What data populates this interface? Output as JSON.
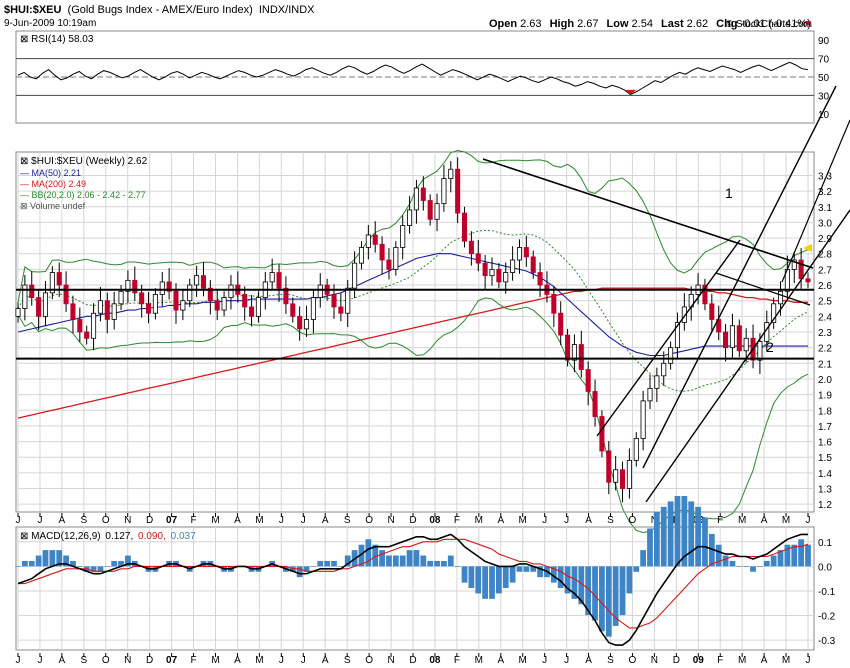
{
  "header": {
    "symbol": "$HUI:$XEU",
    "description": "(Gold Bugs Index - AMEX/Euro Index)",
    "exchange": "INDX/INDX",
    "date": "9-Jun-2009 10:19am",
    "copyright": "© StockCharts.com",
    "open_label": "Open",
    "open": "2.63",
    "high_label": "High",
    "high": "2.67",
    "low_label": "Low",
    "low": "2.54",
    "last_label": "Last",
    "last": "2.62",
    "chg_label": "Chg",
    "chg": "-0.01 (-0.41%)"
  },
  "rsi_legend": "RSI(14) 58.03",
  "price_legend": {
    "main": "$HUI:$XEU (Weekly) 2.62",
    "ma50": "MA(50) 2.21",
    "ma200": "MA(200) 2.49",
    "bb": "BB(20,2.0) 2.06 - 2.42 - 2.77",
    "volume": "Volume undef"
  },
  "macd_legend": {
    "label": "MACD(12,26,9)",
    "macd": "0.127,",
    "signal": "0.090,",
    "hist": "0.037"
  },
  "annotations": [
    "1",
    "2"
  ],
  "colors": {
    "up": "#ffffff",
    "down": "#c0002a",
    "ma50": "#1c1ca0",
    "ma200": "#d81818",
    "bb": "#2c8a2c",
    "macd": "#000000",
    "signal": "#d81818",
    "hist": "#3d85c6",
    "rsi_overbought_fill": "#d81818"
  },
  "chart_data": [
    {
      "type": "line",
      "panel": "rsi",
      "title": "RSI(14) 58.03",
      "ylim": [
        0,
        100
      ],
      "yticks": [
        10,
        30,
        50,
        70,
        90
      ],
      "levels": [
        30,
        70
      ],
      "y": [
        52,
        55,
        50,
        48,
        54,
        58,
        52,
        47,
        49,
        53,
        56,
        51,
        48,
        53,
        57,
        55,
        52,
        49,
        51,
        55,
        58,
        54,
        50,
        47,
        50,
        54,
        56,
        53,
        49,
        52,
        55,
        53,
        50,
        48,
        51,
        54,
        57,
        55,
        52,
        50,
        52,
        55,
        58,
        56,
        53,
        51,
        54,
        58,
        60,
        57,
        54,
        52,
        55,
        59,
        62,
        60,
        56,
        53,
        56,
        60,
        63,
        61,
        57,
        54,
        57,
        61,
        64,
        60,
        56,
        52,
        55,
        58,
        56,
        53,
        50,
        47,
        50,
        53,
        51,
        48,
        45,
        48,
        51,
        49,
        46,
        44,
        47,
        50,
        48,
        45,
        43,
        40,
        42,
        45,
        43,
        40,
        38,
        41,
        39,
        36,
        31,
        34,
        38,
        42,
        46,
        44,
        48,
        52,
        55,
        53,
        57,
        60,
        58,
        56,
        59,
        62,
        60,
        58,
        55,
        58,
        61,
        63,
        60,
        57,
        60,
        63,
        66,
        63,
        59,
        58
      ]
    },
    {
      "type": "candlestick",
      "panel": "price",
      "title": "$HUI:$XEU (Weekly) 2.62",
      "ylim": [
        1.15,
        3.45
      ],
      "yticks": [
        1.2,
        1.3,
        1.4,
        1.5,
        1.6,
        1.7,
        1.8,
        1.9,
        2.0,
        2.1,
        2.2,
        2.3,
        2.4,
        2.5,
        2.6,
        2.7,
        2.8,
        2.9,
        3.0,
        3.1,
        3.2,
        3.3
      ],
      "close": [
        2.45,
        2.6,
        2.52,
        2.4,
        2.55,
        2.68,
        2.6,
        2.48,
        2.38,
        2.3,
        2.26,
        2.42,
        2.5,
        2.38,
        2.48,
        2.56,
        2.63,
        2.55,
        2.48,
        2.42,
        2.54,
        2.62,
        2.56,
        2.44,
        2.5,
        2.6,
        2.66,
        2.58,
        2.5,
        2.44,
        2.52,
        2.6,
        2.54,
        2.46,
        2.4,
        2.52,
        2.62,
        2.68,
        2.58,
        2.48,
        2.4,
        2.32,
        2.38,
        2.52,
        2.6,
        2.54,
        2.46,
        2.42,
        2.58,
        2.74,
        2.84,
        2.92,
        2.86,
        2.76,
        2.7,
        2.84,
        2.98,
        3.08,
        3.22,
        3.14,
        3.02,
        3.12,
        3.28,
        3.34,
        3.06,
        2.88,
        2.8,
        2.74,
        2.66,
        2.7,
        2.62,
        2.68,
        2.76,
        2.84,
        2.78,
        2.68,
        2.6,
        2.54,
        2.42,
        2.28,
        2.12,
        2.22,
        2.06,
        1.92,
        1.76,
        1.54,
        1.34,
        1.42,
        1.3,
        1.48,
        1.62,
        1.86,
        1.94,
        2.02,
        2.1,
        2.2,
        2.36,
        2.46,
        2.54,
        2.6,
        2.48,
        2.38,
        2.3,
        2.2,
        2.34,
        2.18,
        2.26,
        2.12,
        2.24,
        2.36,
        2.48,
        2.56,
        2.7,
        2.76,
        2.64,
        2.62
      ],
      "ma50": [
        2.3,
        2.31,
        2.32,
        2.33,
        2.34,
        2.35,
        2.36,
        2.37,
        2.38,
        2.39,
        2.4,
        2.4,
        2.41,
        2.42,
        2.42,
        2.43,
        2.44,
        2.44,
        2.45,
        2.45,
        2.46,
        2.46,
        2.47,
        2.47,
        2.48,
        2.48,
        2.48,
        2.49,
        2.49,
        2.49,
        2.5,
        2.5,
        2.5,
        2.5,
        2.51,
        2.51,
        2.51,
        2.51,
        2.51,
        2.51,
        2.51,
        2.51,
        2.51,
        2.52,
        2.52,
        2.53,
        2.54,
        2.55,
        2.57,
        2.59,
        2.61,
        2.63,
        2.65,
        2.67,
        2.69,
        2.71,
        2.73,
        2.75,
        2.77,
        2.78,
        2.79,
        2.8,
        2.8,
        2.8,
        2.79,
        2.78,
        2.77,
        2.76,
        2.75,
        2.74,
        2.73,
        2.72,
        2.71,
        2.7,
        2.69,
        2.67,
        2.65,
        2.62,
        2.59,
        2.55,
        2.51,
        2.47,
        2.43,
        2.39,
        2.35,
        2.31,
        2.27,
        2.24,
        2.21,
        2.19,
        2.17,
        2.16,
        2.15,
        2.15,
        2.15,
        2.16,
        2.17,
        2.18,
        2.19,
        2.2,
        2.21,
        2.21,
        2.21,
        2.21,
        2.21,
        2.21,
        2.21,
        2.21,
        2.21,
        2.21,
        2.21,
        2.21,
        2.21,
        2.21,
        2.21,
        2.21
      ],
      "ma200": [
        1.75,
        1.76,
        1.77,
        1.78,
        1.79,
        1.8,
        1.81,
        1.82,
        1.83,
        1.84,
        1.85,
        1.86,
        1.87,
        1.88,
        1.89,
        1.9,
        1.91,
        1.92,
        1.93,
        1.94,
        1.95,
        1.96,
        1.97,
        1.98,
        1.99,
        2.0,
        2.01,
        2.02,
        2.03,
        2.04,
        2.05,
        2.06,
        2.07,
        2.08,
        2.09,
        2.1,
        2.11,
        2.12,
        2.13,
        2.14,
        2.15,
        2.16,
        2.17,
        2.18,
        2.19,
        2.2,
        2.21,
        2.22,
        2.23,
        2.24,
        2.25,
        2.26,
        2.27,
        2.28,
        2.29,
        2.3,
        2.31,
        2.32,
        2.33,
        2.34,
        2.35,
        2.36,
        2.37,
        2.38,
        2.39,
        2.4,
        2.41,
        2.42,
        2.43,
        2.44,
        2.45,
        2.46,
        2.47,
        2.48,
        2.49,
        2.5,
        2.51,
        2.52,
        2.53,
        2.54,
        2.55,
        2.56,
        2.56,
        2.57,
        2.57,
        2.58,
        2.58,
        2.58,
        2.58,
        2.58,
        2.58,
        2.58,
        2.58,
        2.58,
        2.58,
        2.58,
        2.58,
        2.58,
        2.57,
        2.57,
        2.56,
        2.56,
        2.55,
        2.55,
        2.54,
        2.53,
        2.52,
        2.52,
        2.51,
        2.51,
        2.5,
        2.5,
        2.5,
        2.49,
        2.49,
        2.49
      ],
      "horizontal_lines": [
        2.57,
        2.13
      ],
      "x_labels": [
        "J",
        "J",
        "A",
        "S",
        "O",
        "N",
        "D",
        "07",
        "F",
        "M",
        "A",
        "M",
        "J",
        "J",
        "A",
        "S",
        "O",
        "N",
        "D",
        "08",
        "F",
        "M",
        "A",
        "M",
        "J",
        "J",
        "A",
        "S",
        "O",
        "N",
        "D",
        "09",
        "F",
        "M",
        "A",
        "M",
        "J"
      ],
      "annotations": [
        "1",
        "2"
      ]
    },
    {
      "type": "line",
      "panel": "macd",
      "title": "MACD(12,26,9) 0.127, 0.090, 0.037",
      "ylim": [
        -0.34,
        0.16
      ],
      "yticks": [
        -0.3,
        -0.2,
        -0.1,
        0.0,
        0.1
      ],
      "series": [
        {
          "name": "MACD(12,26,9)",
          "values": [
            -0.07,
            -0.06,
            -0.05,
            -0.03,
            -0.01,
            0.0,
            0.01,
            0.01,
            0.0,
            -0.01,
            -0.02,
            -0.03,
            -0.03,
            -0.02,
            -0.01,
            0.0,
            0.01,
            0.01,
            0.0,
            -0.01,
            -0.01,
            0.0,
            0.01,
            0.01,
            0.0,
            -0.01,
            0.0,
            0.01,
            0.01,
            0.0,
            -0.01,
            -0.01,
            0.0,
            0.0,
            -0.01,
            -0.01,
            0.0,
            0.01,
            0.0,
            -0.01,
            -0.02,
            -0.03,
            -0.03,
            -0.02,
            -0.01,
            -0.01,
            -0.01,
            -0.01,
            0.01,
            0.03,
            0.05,
            0.07,
            0.08,
            0.08,
            0.08,
            0.09,
            0.1,
            0.11,
            0.12,
            0.12,
            0.11,
            0.11,
            0.12,
            0.13,
            0.11,
            0.08,
            0.06,
            0.04,
            0.02,
            0.01,
            0.0,
            0.0,
            0.0,
            0.01,
            0.01,
            0.0,
            -0.01,
            -0.02,
            -0.04,
            -0.06,
            -0.09,
            -0.11,
            -0.14,
            -0.18,
            -0.22,
            -0.27,
            -0.31,
            -0.32,
            -0.32,
            -0.3,
            -0.26,
            -0.21,
            -0.16,
            -0.11,
            -0.07,
            -0.03,
            0.01,
            0.04,
            0.06,
            0.08,
            0.08,
            0.07,
            0.06,
            0.05,
            0.05,
            0.04,
            0.04,
            0.03,
            0.04,
            0.05,
            0.07,
            0.09,
            0.11,
            0.12,
            0.13,
            0.13
          ]
        },
        {
          "name": "signal",
          "values": [
            -0.07,
            -0.07,
            -0.06,
            -0.05,
            -0.04,
            -0.03,
            -0.02,
            -0.01,
            -0.01,
            -0.01,
            -0.01,
            -0.02,
            -0.02,
            -0.02,
            -0.02,
            -0.01,
            -0.01,
            0.0,
            0.0,
            0.0,
            0.0,
            0.0,
            0.0,
            0.0,
            0.0,
            0.0,
            0.0,
            0.0,
            0.0,
            0.0,
            0.0,
            0.0,
            0.0,
            0.0,
            0.0,
            0.0,
            0.0,
            0.0,
            0.0,
            0.0,
            -0.01,
            -0.01,
            -0.02,
            -0.02,
            -0.02,
            -0.02,
            -0.02,
            -0.01,
            -0.01,
            0.0,
            0.01,
            0.02,
            0.04,
            0.05,
            0.06,
            0.07,
            0.08,
            0.08,
            0.09,
            0.1,
            0.1,
            0.1,
            0.11,
            0.11,
            0.11,
            0.11,
            0.1,
            0.09,
            0.08,
            0.07,
            0.05,
            0.04,
            0.03,
            0.02,
            0.02,
            0.01,
            0.01,
            0.0,
            -0.01,
            -0.02,
            -0.04,
            -0.05,
            -0.07,
            -0.09,
            -0.12,
            -0.15,
            -0.18,
            -0.21,
            -0.23,
            -0.25,
            -0.25,
            -0.24,
            -0.23,
            -0.21,
            -0.18,
            -0.15,
            -0.12,
            -0.09,
            -0.06,
            -0.03,
            -0.01,
            0.01,
            0.02,
            0.03,
            0.04,
            0.04,
            0.04,
            0.04,
            0.04,
            0.04,
            0.05,
            0.06,
            0.07,
            0.08,
            0.08,
            0.09
          ]
        }
      ],
      "x_labels": [
        "J",
        "J",
        "A",
        "S",
        "O",
        "N",
        "D",
        "07",
        "F",
        "M",
        "A",
        "M",
        "J",
        "J",
        "A",
        "S",
        "O",
        "N",
        "D",
        "08",
        "F",
        "M",
        "A",
        "M",
        "J",
        "J",
        "A",
        "S",
        "O",
        "N",
        "D",
        "09",
        "F",
        "M",
        "A",
        "M",
        "J"
      ]
    }
  ]
}
